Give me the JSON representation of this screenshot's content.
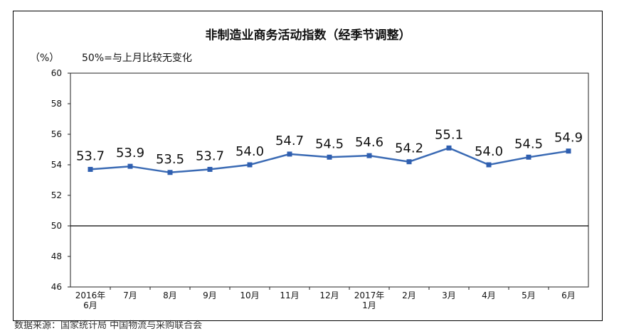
{
  "chart_data": {
    "type": "line",
    "title": "非制造业商务活动指数（经季节调整）",
    "unit_label": "（%）",
    "reference_note": "50%=与上月比较无变化",
    "categories": [
      [
        "2016年",
        "6月"
      ],
      [
        "7月"
      ],
      [
        "8月"
      ],
      [
        "9月"
      ],
      [
        "10月"
      ],
      [
        "11月"
      ],
      [
        "12月"
      ],
      [
        "2017年",
        "1月"
      ],
      [
        "2月"
      ],
      [
        "3月"
      ],
      [
        "4月"
      ],
      [
        "5月"
      ],
      [
        "6月"
      ]
    ],
    "series": [
      {
        "name": "",
        "values": [
          53.7,
          53.9,
          53.5,
          53.7,
          54.0,
          54.7,
          54.5,
          54.6,
          54.2,
          55.1,
          54.0,
          54.5,
          54.9
        ]
      }
    ],
    "data_labels": [
      "53.7",
      "53.9",
      "53.5",
      "53.7",
      "54.0",
      "54.7",
      "54.5",
      "54.6",
      "54.2",
      "55.1",
      "54.0",
      "54.5",
      "54.9"
    ],
    "ylim": [
      46,
      60
    ],
    "yticks": [
      46,
      48,
      50,
      52,
      54,
      56,
      58,
      60
    ],
    "reference_line": 50,
    "grid": false,
    "legend": "none",
    "colors": {
      "line": "#3a6ab4",
      "marker": "#2f5fb0",
      "reference": "#000000"
    }
  },
  "footer_note": "数据来源：国家统计局 中国物流与采购联合会"
}
